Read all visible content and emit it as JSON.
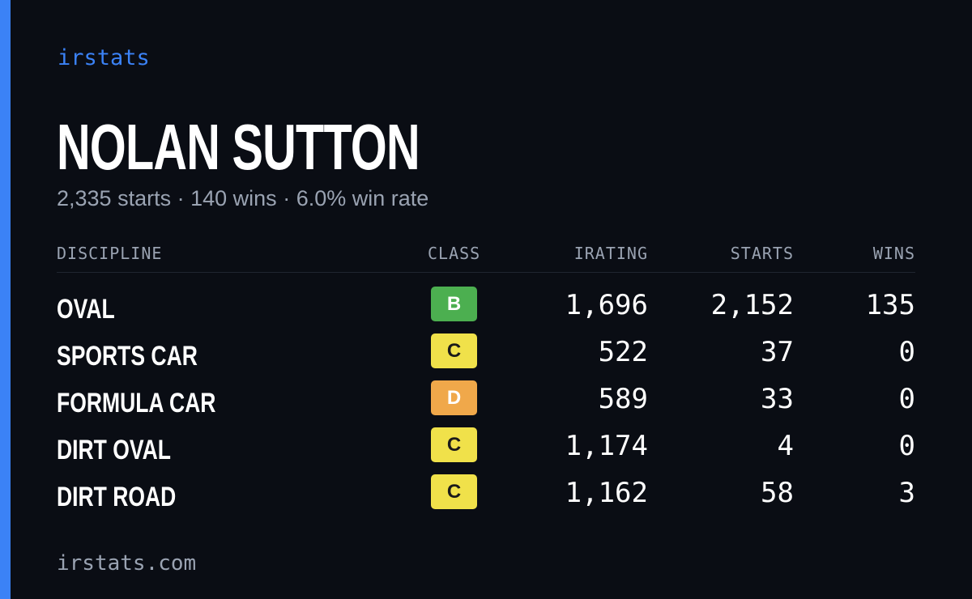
{
  "brand": "irstats",
  "driver": {
    "name": "NOLAN SUTTON",
    "starts": "2,335 starts",
    "wins": "140 wins",
    "win_rate": "6.0% win rate",
    "separator": "·"
  },
  "table": {
    "headers": {
      "discipline": "DISCIPLINE",
      "class": "CLASS",
      "irating": "IRATING",
      "starts": "STARTS",
      "wins": "WINS"
    },
    "rows": [
      {
        "discipline": "OVAL",
        "class": "B",
        "class_color": "#4caf50",
        "class_text_color": "#ffffff",
        "irating": "1,696",
        "starts": "2,152",
        "wins": "135"
      },
      {
        "discipline": "SPORTS CAR",
        "class": "C",
        "class_color": "#f0e14a",
        "class_text_color": "#1a1a1a",
        "irating": "522",
        "starts": "37",
        "wins": "0"
      },
      {
        "discipline": "FORMULA CAR",
        "class": "D",
        "class_color": "#f0a84a",
        "class_text_color": "#ffffff",
        "irating": "589",
        "starts": "33",
        "wins": "0"
      },
      {
        "discipline": "DIRT OVAL",
        "class": "C",
        "class_color": "#f0e14a",
        "class_text_color": "#1a1a1a",
        "irating": "1,174",
        "starts": "4",
        "wins": "0"
      },
      {
        "discipline": "DIRT ROAD",
        "class": "C",
        "class_color": "#f0e14a",
        "class_text_color": "#1a1a1a",
        "irating": "1,162",
        "starts": "58",
        "wins": "3"
      }
    ]
  },
  "footer": "irstats.com",
  "colors": {
    "background": "#0a0d14",
    "accent": "#3b82f6",
    "muted": "#9aa3b2"
  }
}
